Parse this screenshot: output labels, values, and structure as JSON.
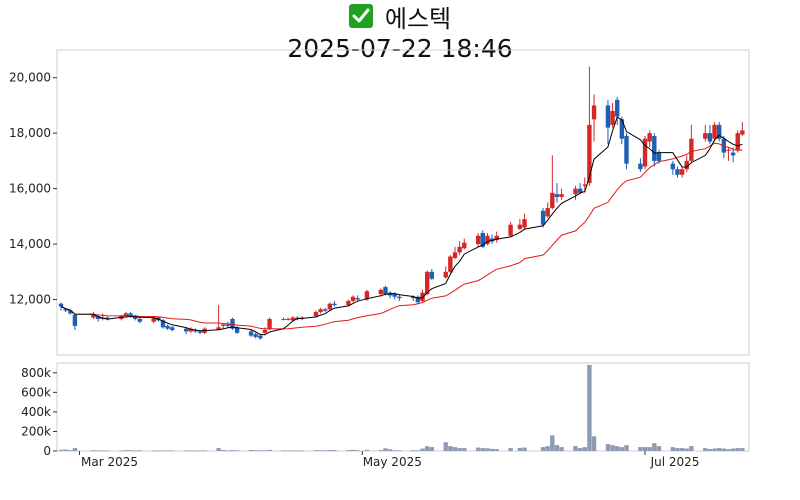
{
  "title": "에스텍",
  "subtitle": "2025-07-22 18:46",
  "icons": {
    "title_icon": "check-mark-icon"
  },
  "colors": {
    "up": "#d62728",
    "down": "#1f5fb4",
    "ma_short": "#000000",
    "ma_long": "#e31a1c",
    "volume": "#8f9bb3"
  },
  "chart_data": {
    "type": "candlestick",
    "price_ylim": [
      10000,
      21000
    ],
    "price_ticks": [
      "12,000",
      "14,000",
      "16,000",
      "18,000",
      "20,000"
    ],
    "price_tick_values": [
      12000,
      14000,
      16000,
      18000,
      20000
    ],
    "volume_ylim": [
      0,
      900000
    ],
    "volume_ticks": [
      "0",
      "200k",
      "400k",
      "600k",
      "800k"
    ],
    "volume_tick_values": [
      0,
      200000,
      400000,
      600000,
      800000
    ],
    "x_ticks": [
      {
        "label": "Mar 2025",
        "date": "2025-03-01"
      },
      {
        "label": "May 2025",
        "date": "2025-05-01"
      },
      {
        "label": "Jul 2025",
        "date": "2025-07-01"
      }
    ],
    "x_range": [
      "2025-02-25",
      "2025-07-22"
    ],
    "candles": [
      [
        "2025-02-25",
        11850,
        11750,
        11900,
        11600,
        12000
      ],
      [
        "2025-02-26",
        11650,
        11600,
        11700,
        11550,
        15000
      ],
      [
        "2025-02-27",
        11600,
        11500,
        11650,
        11450,
        9000
      ],
      [
        "2025-02-28",
        11450,
        11050,
        11500,
        10900,
        30000
      ],
      [
        "2025-03-04",
        11350,
        11450,
        11550,
        11300,
        8000
      ],
      [
        "2025-03-05",
        11400,
        11300,
        11450,
        11200,
        7000
      ],
      [
        "2025-03-06",
        11300,
        11350,
        11500,
        11250,
        6000
      ],
      [
        "2025-03-07",
        11350,
        11300,
        11400,
        11250,
        5000
      ],
      [
        "2025-03-10",
        11300,
        11400,
        11450,
        11250,
        5000
      ],
      [
        "2025-03-11",
        11400,
        11500,
        11550,
        11350,
        8000
      ],
      [
        "2025-03-12",
        11500,
        11400,
        11550,
        11350,
        9000
      ],
      [
        "2025-03-13",
        11400,
        11300,
        11450,
        11250,
        6000
      ],
      [
        "2025-03-14",
        11300,
        11200,
        11400,
        11150,
        7000
      ],
      [
        "2025-03-17",
        11200,
        11350,
        11400,
        11150,
        5000
      ],
      [
        "2025-03-18",
        11350,
        11250,
        11400,
        11200,
        4000
      ],
      [
        "2025-03-19",
        11250,
        11000,
        11300,
        10950,
        6000
      ],
      [
        "2025-03-20",
        11050,
        10950,
        11100,
        10900,
        6000
      ],
      [
        "2025-03-21",
        11000,
        10900,
        11050,
        10850,
        5000
      ],
      [
        "2025-03-24",
        10950,
        10850,
        11000,
        10750,
        6000
      ],
      [
        "2025-03-25",
        10850,
        10950,
        11000,
        10800,
        5000
      ],
      [
        "2025-03-26",
        10900,
        10850,
        10950,
        10800,
        4000
      ],
      [
        "2025-03-27",
        10850,
        10800,
        10900,
        10750,
        5000
      ],
      [
        "2025-03-28",
        10800,
        10950,
        11000,
        10750,
        6000
      ],
      [
        "2025-03-31",
        10900,
        11000,
        11800,
        10900,
        30000
      ],
      [
        "2025-04-01",
        11050,
        11100,
        11150,
        10950,
        10000
      ],
      [
        "2025-04-02",
        11100,
        11050,
        11200,
        11000,
        6000
      ],
      [
        "2025-04-03",
        11300,
        10950,
        11350,
        10900,
        9000
      ],
      [
        "2025-04-04",
        11000,
        10800,
        11050,
        10750,
        8000
      ],
      [
        "2025-04-07",
        10850,
        10700,
        10900,
        10650,
        10000
      ],
      [
        "2025-04-08",
        10750,
        10650,
        10800,
        10600,
        7000
      ],
      [
        "2025-04-09",
        10700,
        10600,
        10750,
        10550,
        8000
      ],
      [
        "2025-04-10",
        10800,
        10900,
        11000,
        10750,
        8000
      ],
      [
        "2025-04-11",
        10950,
        11300,
        11350,
        10900,
        12000
      ],
      [
        "2025-04-14",
        11300,
        11300,
        11350,
        11250,
        6000
      ],
      [
        "2025-04-15",
        11300,
        11300,
        11350,
        11250,
        5000
      ],
      [
        "2025-04-16",
        11250,
        11350,
        11400,
        11200,
        6000
      ],
      [
        "2025-04-17",
        11350,
        11300,
        11400,
        11250,
        5000
      ],
      [
        "2025-04-18",
        11300,
        11350,
        11400,
        11250,
        5000
      ],
      [
        "2025-04-21",
        11400,
        11550,
        11600,
        11350,
        8000
      ],
      [
        "2025-04-22",
        11550,
        11650,
        11700,
        11500,
        9000
      ],
      [
        "2025-04-23",
        11650,
        11600,
        11700,
        11550,
        7000
      ],
      [
        "2025-04-24",
        11650,
        11850,
        11900,
        11600,
        10000
      ],
      [
        "2025-04-25",
        11850,
        11800,
        11950,
        11750,
        9000
      ],
      [
        "2025-04-28",
        11800,
        11950,
        12000,
        11750,
        9000
      ],
      [
        "2025-04-29",
        11950,
        12100,
        12150,
        11900,
        12000
      ],
      [
        "2025-04-30",
        12050,
        12000,
        12150,
        11950,
        8000
      ],
      [
        "2025-05-02",
        12000,
        12300,
        12350,
        11950,
        12000
      ],
      [
        "2025-05-05",
        12200,
        12350,
        12400,
        12100,
        10000
      ],
      [
        "2025-05-06",
        12450,
        12200,
        12500,
        12150,
        28000
      ],
      [
        "2025-05-07",
        12250,
        12150,
        12300,
        12050,
        18000
      ],
      [
        "2025-05-08",
        12200,
        12100,
        12250,
        12000,
        8000
      ],
      [
        "2025-05-09",
        12100,
        12050,
        12200,
        11950,
        7000
      ],
      [
        "2025-05-12",
        12100,
        12050,
        12150,
        11950,
        8000
      ],
      [
        "2025-05-13",
        12100,
        11900,
        12150,
        11850,
        7000
      ],
      [
        "2025-05-14",
        11950,
        12250,
        12350,
        11900,
        25000
      ],
      [
        "2025-05-15",
        12200,
        13000,
        13050,
        12150,
        50000
      ],
      [
        "2025-05-16",
        13000,
        12750,
        13100,
        12700,
        40000
      ],
      [
        "2025-05-19",
        12800,
        13000,
        13200,
        12750,
        90000
      ],
      [
        "2025-05-20",
        13000,
        13550,
        13600,
        12950,
        50000
      ],
      [
        "2025-05-21",
        13500,
        13700,
        13900,
        13450,
        40000
      ],
      [
        "2025-05-22",
        13700,
        13900,
        14100,
        13600,
        30000
      ],
      [
        "2025-05-23",
        13850,
        14050,
        14200,
        13800,
        30000
      ],
      [
        "2025-05-26",
        14000,
        14300,
        14400,
        13900,
        35000
      ],
      [
        "2025-05-27",
        14400,
        13900,
        14500,
        13850,
        30000
      ],
      [
        "2025-05-28",
        14000,
        14300,
        14400,
        13950,
        28000
      ],
      [
        "2025-05-29",
        14200,
        14100,
        14350,
        14000,
        22000
      ],
      [
        "2025-05-30",
        14150,
        14300,
        14450,
        14050,
        20000
      ],
      [
        "2025-06-02",
        14300,
        14700,
        14800,
        14250,
        30000
      ],
      [
        "2025-06-04",
        14550,
        14700,
        14900,
        14500,
        32000
      ],
      [
        "2025-06-05",
        14600,
        14900,
        15100,
        14550,
        35000
      ],
      [
        "2025-06-09",
        15200,
        14700,
        15300,
        14600,
        40000
      ],
      [
        "2025-06-10",
        15000,
        15300,
        15500,
        14950,
        50000
      ],
      [
        "2025-06-11",
        15300,
        15850,
        17200,
        15250,
        160000
      ],
      [
        "2025-06-12",
        15800,
        15700,
        16200,
        15500,
        60000
      ],
      [
        "2025-06-13",
        15700,
        15800,
        16000,
        15600,
        40000
      ],
      [
        "2025-06-16",
        15800,
        16000,
        16100,
        15600,
        50000
      ],
      [
        "2025-06-17",
        16000,
        15850,
        16200,
        15800,
        30000
      ],
      [
        "2025-06-18",
        16100,
        16150,
        16400,
        15850,
        40000
      ],
      [
        "2025-06-19",
        16200,
        18300,
        20400,
        16100,
        880000
      ],
      [
        "2025-06-20",
        18500,
        19000,
        19400,
        17700,
        150000
      ],
      [
        "2025-06-23",
        19000,
        18200,
        19200,
        17600,
        70000
      ],
      [
        "2025-06-24",
        18300,
        18800,
        19100,
        18200,
        60000
      ],
      [
        "2025-06-25",
        19200,
        18600,
        19300,
        18300,
        50000
      ],
      [
        "2025-06-26",
        18500,
        17800,
        18600,
        17600,
        40000
      ],
      [
        "2025-06-27",
        17900,
        16900,
        18000,
        16700,
        60000
      ],
      [
        "2025-06-30",
        16900,
        16700,
        17100,
        16600,
        40000
      ],
      [
        "2025-07-01",
        16800,
        17800,
        17900,
        16700,
        40000
      ],
      [
        "2025-07-02",
        17700,
        18000,
        18100,
        17500,
        40000
      ],
      [
        "2025-07-03",
        17900,
        17000,
        18000,
        16800,
        80000
      ],
      [
        "2025-07-04",
        17300,
        17000,
        17400,
        16900,
        50000
      ],
      [
        "2025-07-07",
        16900,
        16700,
        17000,
        16500,
        40000
      ],
      [
        "2025-07-08",
        16700,
        16500,
        16800,
        16400,
        30000
      ],
      [
        "2025-07-09",
        16500,
        16700,
        16800,
        16400,
        30000
      ],
      [
        "2025-07-10",
        16700,
        17000,
        17200,
        16600,
        25000
      ],
      [
        "2025-07-11",
        17000,
        17800,
        18300,
        16950,
        50000
      ],
      [
        "2025-07-14",
        17800,
        18000,
        18300,
        17700,
        30000
      ],
      [
        "2025-07-15",
        18000,
        17700,
        18300,
        17600,
        20000
      ],
      [
        "2025-07-16",
        17800,
        18300,
        18400,
        17700,
        25000
      ],
      [
        "2025-07-17",
        18300,
        17800,
        18400,
        17700,
        30000
      ],
      [
        "2025-07-18",
        17800,
        17300,
        17900,
        17100,
        25000
      ],
      [
        "2025-07-19",
        17400,
        17400,
        17500,
        17000,
        20000
      ],
      [
        "2025-07-20",
        17300,
        17200,
        17500,
        16950,
        25000
      ],
      [
        "2025-07-21",
        17400,
        18000,
        18100,
        17300,
        30000
      ],
      [
        "2025-07-22",
        17950,
        18100,
        18400,
        17900,
        30000
      ]
    ]
  }
}
